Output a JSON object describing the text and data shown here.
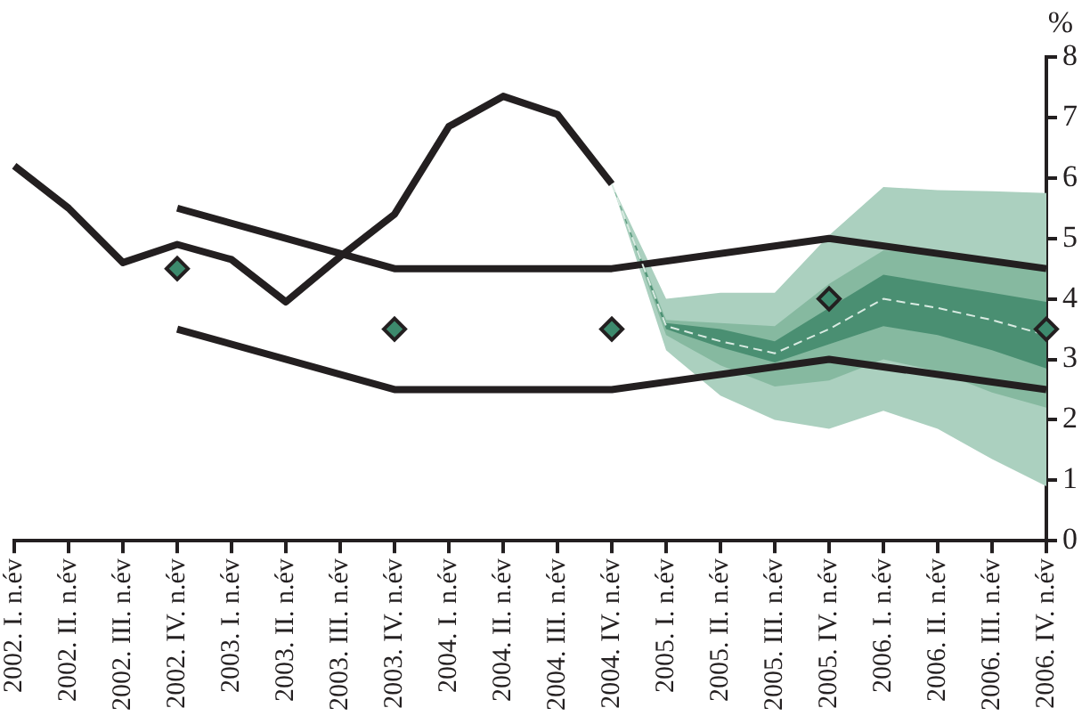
{
  "chart_data": {
    "type": "line",
    "ylabel": "%",
    "categories": [
      "2002. I. n.év",
      "2002. II. n.év",
      "2002. III. n.év",
      "2002. IV. n.év",
      "2003. I. n.év",
      "2003. II. n.év",
      "2003. III. n.év",
      "2003. IV. n.év",
      "2004. I. n.év",
      "2004. II. n.év",
      "2004. III. n.év",
      "2004. IV. n.év",
      "2005. I. n.év",
      "2005. II. n.év",
      "2005. III. n.év",
      "2005. IV. n.év",
      "2006. I. n.év",
      "2006. II. n.év",
      "2006. III. n.év",
      "2006. IV. n.év"
    ],
    "ylim": [
      0,
      8
    ],
    "yticks": [
      0,
      1,
      2,
      3,
      4,
      5,
      6,
      7,
      8
    ],
    "grid": false,
    "legend": false,
    "marker": "none",
    "line_style": "solid",
    "series": [
      {
        "color": "#abd0bf",
        "values": [
          null,
          null,
          null,
          null,
          null,
          null,
          null,
          null,
          null,
          null,
          null,
          null,
          null,
          null,
          null,
          null,
          null,
          null,
          null,
          null
        ],
        "lower": [
          null,
          null,
          null,
          null,
          null,
          null,
          null,
          null,
          null,
          null,
          null,
          5.9,
          3.15,
          2.4,
          2.0,
          1.85,
          2.15,
          1.85,
          1.35,
          0.9
        ],
        "upper": [
          null,
          null,
          null,
          null,
          null,
          null,
          null,
          null,
          null,
          null,
          null,
          5.9,
          4.0,
          4.1,
          4.1,
          5.05,
          5.85,
          5.8,
          5.78,
          5.75
        ]
      },
      {
        "color": "#86b9a0",
        "values": [
          null,
          null,
          null,
          null,
          null,
          null,
          null,
          null,
          null,
          null,
          null,
          null,
          null,
          null,
          null,
          null,
          null,
          null,
          null,
          null
        ],
        "lower": [
          null,
          null,
          null,
          null,
          null,
          null,
          null,
          null,
          null,
          null,
          null,
          5.9,
          3.4,
          2.9,
          2.55,
          2.65,
          3.0,
          2.8,
          2.45,
          2.2
        ],
        "upper": [
          null,
          null,
          null,
          null,
          null,
          null,
          null,
          null,
          null,
          null,
          null,
          5.9,
          3.65,
          3.6,
          3.55,
          4.25,
          4.8,
          4.75,
          4.6,
          4.55
        ]
      },
      {
        "color": "#4a8f72",
        "values": [
          null,
          null,
          null,
          null,
          null,
          null,
          null,
          null,
          null,
          null,
          null,
          null,
          null,
          null,
          null,
          null,
          null,
          null,
          null,
          null
        ],
        "lower": [
          null,
          null,
          null,
          null,
          null,
          null,
          null,
          null,
          null,
          null,
          null,
          5.9,
          3.5,
          3.2,
          2.95,
          3.25,
          3.55,
          3.4,
          3.15,
          2.85
        ],
        "upper": [
          null,
          null,
          null,
          null,
          null,
          null,
          null,
          null,
          null,
          null,
          null,
          5.9,
          3.6,
          3.5,
          3.3,
          3.85,
          4.4,
          4.25,
          4.1,
          3.95
        ]
      },
      {
        "color": "#d9ebe2",
        "line_style": "dashed",
        "values": [
          null,
          null,
          null,
          null,
          null,
          null,
          null,
          null,
          null,
          null,
          null,
          5.9,
          3.55,
          3.3,
          3.1,
          3.5,
          4.0,
          3.85,
          3.65,
          3.4
        ]
      },
      {
        "color": "#231f20",
        "values": [
          6.2,
          5.5,
          4.6,
          4.9,
          4.65,
          3.95,
          4.7,
          5.4,
          6.85,
          7.35,
          7.05,
          5.9,
          null,
          null,
          null,
          null,
          null,
          null,
          null,
          null
        ]
      },
      {
        "color": "#231f20",
        "values": [
          null,
          null,
          null,
          5.5,
          null,
          null,
          null,
          4.5,
          null,
          null,
          null,
          4.5,
          null,
          null,
          null,
          5.0,
          null,
          null,
          null,
          4.5
        ]
      },
      {
        "color": "#231f20",
        "values": [
          null,
          null,
          null,
          3.5,
          null,
          null,
          null,
          2.5,
          null,
          null,
          null,
          2.5,
          null,
          null,
          null,
          3.0,
          null,
          null,
          null,
          2.5
        ]
      },
      {
        "type": "scatter",
        "marker": "diamond",
        "color": "#3d8a6d",
        "values": [
          null,
          null,
          null,
          4.5,
          null,
          null,
          null,
          3.5,
          null,
          null,
          null,
          3.5,
          null,
          null,
          null,
          4.0,
          null,
          null,
          null,
          3.5
        ]
      }
    ]
  }
}
